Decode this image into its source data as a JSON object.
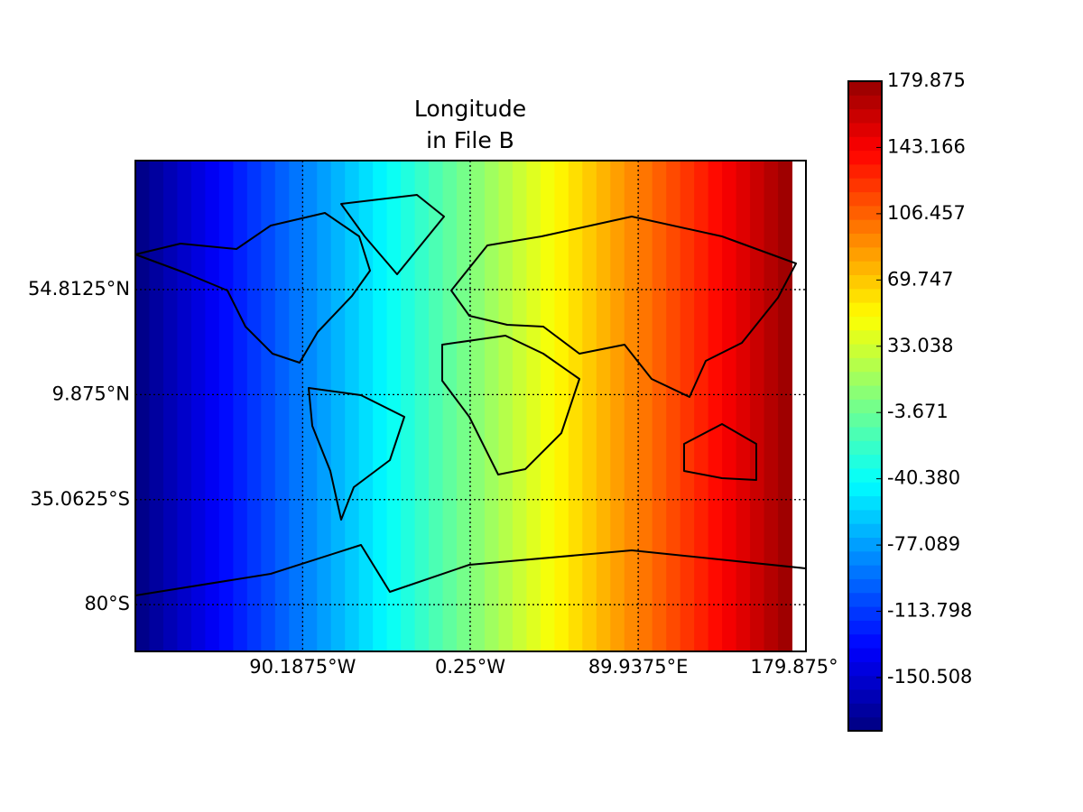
{
  "chart_data": {
    "type": "map",
    "title": [
      "Longitude",
      "in File B"
    ],
    "xlim": [
      -180,
      180
    ],
    "ylim": [
      -100,
      110
    ],
    "xticks": [
      {
        "value": -90.1875,
        "label": "90.1875°W"
      },
      {
        "value": -0.25,
        "label": "0.25°W"
      },
      {
        "value": 89.9375,
        "label": "89.9375°E"
      },
      {
        "value": 179.875,
        "label": "179.875°"
      }
    ],
    "yticks": [
      {
        "value": 54.8125,
        "label": "54.8125°N"
      },
      {
        "value": 9.875,
        "label": "9.875°N"
      },
      {
        "value": -35.0625,
        "label": "35.0625°S"
      },
      {
        "value": -80,
        "label": "80°S"
      }
    ],
    "grid": true,
    "colormap": "jet",
    "cell_width": 7.5,
    "cells": [
      -176.25,
      -168.75,
      -161.25,
      -153.75,
      -146.25,
      -138.75,
      -131.25,
      -123.75,
      -116.25,
      -108.75,
      -101.25,
      -93.75,
      -86.25,
      -78.75,
      -71.25,
      -63.75,
      -56.25,
      -48.75,
      -41.25,
      -33.75,
      -26.25,
      -18.75,
      -11.25,
      -3.75,
      3.75,
      11.25,
      18.75,
      26.25,
      33.75,
      41.25,
      48.75,
      56.25,
      63.75,
      71.25,
      78.75,
      86.25,
      93.75,
      101.25,
      108.75,
      116.25,
      123.75,
      131.25,
      138.75,
      146.25,
      153.75,
      161.25,
      168.75
    ],
    "clim": [
      -180,
      179.875
    ],
    "cticks": [
      179.875,
      143.166,
      106.457,
      69.747,
      33.038,
      -3.671,
      {
        "value": -40.38,
        "label": "-40.380"
      },
      -77.089,
      -113.798,
      -150.508
    ]
  }
}
